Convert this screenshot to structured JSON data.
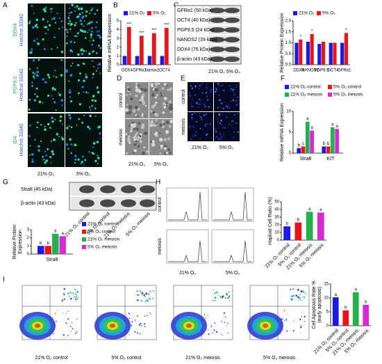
{
  "panel_labels": [
    "A",
    "B",
    "C",
    "D",
    "E",
    "F",
    "G",
    "H",
    "I"
  ],
  "images": {
    "A": {
      "row_labels": [
        [
          "DDX4",
          "Hoechst 33342"
        ],
        [
          "PGP9.5",
          "Hoechst 33342"
        ],
        [
          "ID4",
          "Hoechst 33342"
        ]
      ],
      "col_labels": [
        "21% O₂",
        "5% O₂"
      ]
    },
    "D": {
      "row_labels": [
        "control",
        "meiosis"
      ],
      "col_labels": [
        "21% O₂",
        "5% O₂"
      ]
    },
    "E": {
      "row_labels": [
        "control",
        "meiosis"
      ],
      "col_labels": [
        "21% O₂",
        "5% O₂"
      ]
    },
    "H": {
      "row_labels": [
        "control",
        "meiosis"
      ],
      "col_labels": [
        "21% O₂",
        "5% O₂"
      ]
    },
    "I": {
      "col_labels": [
        "21% O₂ control",
        "5% O₂ control",
        "21% O₂ meiosis",
        "5% O₂ meiosis"
      ]
    }
  },
  "blots": {
    "C": {
      "rows": [
        "GFRα1 (50 kDa)",
        "OCT4 (40 kDa)",
        "PGP9.5 (24 kDa)",
        "NANOS2 (39 kDa)",
        "DDX4 (76 kDa)",
        "β-actin (43 kDa)"
      ],
      "col_labels": [
        "21% O₂",
        "5% O₂"
      ]
    },
    "G": {
      "rows": [
        "Stra8 (45 kDa)",
        "β-actin (43 kDa)"
      ],
      "col_labels": [
        "21% O₂ control",
        "5% O₂ control",
        "21% O₂ meiosis",
        "5% O₂ meiosis"
      ]
    }
  },
  "chart_data": [
    {
      "type": "bar",
      "y_label": [
        "Relative mRNA Expression"
      ],
      "categories": [
        "DDX4",
        "GFRα1",
        "Nanos2",
        "OCT4"
      ],
      "series": [
        {
          "name": "21% O₂",
          "color": "#1a1ae6",
          "values": [
            1,
            1,
            1,
            1
          ]
        },
        {
          "name": "5% O₂",
          "color": "#e8141b",
          "values": [
            4.3,
            3.3,
            3.6,
            4.2
          ],
          "sig": [
            "***",
            "***",
            "***",
            "***"
          ]
        }
      ],
      "ylim": [
        0,
        5
      ],
      "yticks": [
        0,
        1,
        2,
        3,
        4,
        5
      ],
      "legend": "top"
    },
    {
      "type": "bar",
      "y_label": [
        "Relative Protein Expression"
      ],
      "categories": [
        "DDX4",
        "NANOS2",
        "PGP9.5",
        "OCT4",
        "GFRα1"
      ],
      "series": [
        {
          "name": "21% O₂",
          "color": "#1a1ae6",
          "values": [
            1.0,
            1.05,
            0.95,
            1.0,
            1.0
          ]
        },
        {
          "name": "5% O₂",
          "color": "#e8141b",
          "values": [
            1.15,
            1.4,
            1.05,
            1.0,
            1.45
          ],
          "sig": [
            "*",
            "*",
            null,
            null,
            "*"
          ]
        }
      ],
      "ylim": [
        0,
        2
      ],
      "yticks": [
        {
          "value": 0,
          "label": "0.0"
        },
        {
          "value": 0.5,
          "label": "0.5"
        },
        {
          "value": 1,
          "label": "1.0"
        },
        {
          "value": 1.5,
          "label": "1.5"
        },
        {
          "value": 2,
          "label": "2.0"
        }
      ],
      "legend": "top"
    },
    {
      "type": "bar",
      "y_label": [
        "Relative mRNA Expression"
      ],
      "categories": [
        "Stra8",
        "KIT"
      ],
      "series": [
        {
          "name": "21% O₂ control",
          "color": "#1a1ae6",
          "values": [
            1.2,
            1.6
          ],
          "sig": [
            "b",
            "b"
          ]
        },
        {
          "name": "5% O₂ control",
          "color": "#e8141b",
          "values": [
            1.6,
            1.6
          ],
          "sig": [
            "c",
            "b"
          ]
        },
        {
          "name": "21% O₂ meiosis",
          "color": "#22b14c",
          "values": [
            7.5,
            6.2
          ],
          "sig": [
            "a",
            "a"
          ]
        },
        {
          "name": "5% O₂ meiosis",
          "color": "#d42bd4",
          "values": [
            5.4,
            5.8
          ],
          "sig": [
            "a",
            "a"
          ]
        }
      ],
      "ylim": [
        0,
        10
      ],
      "yticks": [
        0,
        5,
        10
      ],
      "legend": "top"
    },
    {
      "type": "bar",
      "y_label": [
        "Relative Protein",
        "Expression"
      ],
      "categories": [
        "Stra8"
      ],
      "series": [
        {
          "name": "21% O₂ control",
          "color": "#1a1ae6",
          "values": [
            1.0
          ],
          "sig": [
            "b"
          ]
        },
        {
          "name": "5% O₂ control",
          "color": "#e8141b",
          "values": [
            1.0
          ],
          "sig": [
            "b"
          ]
        },
        {
          "name": "21% O₂ meiosis",
          "color": "#22b14c",
          "values": [
            2.5
          ],
          "sig": [
            "a"
          ]
        },
        {
          "name": "5% O₂ meiosis",
          "color": "#d42bd4",
          "values": [
            2.2
          ],
          "sig": [
            "a"
          ]
        }
      ],
      "ylim": [
        0,
        3
      ],
      "yticks": [
        0,
        1,
        2,
        3
      ],
      "legend": "right"
    },
    {
      "type": "bar",
      "y_label": [
        "Haploid Cell Ratio (%)"
      ],
      "categories": [
        "21% O₂ control",
        "5% O₂ control",
        "21% O₂ meiosis",
        "5% O₂ meiosis"
      ],
      "values": [
        18,
        23,
        37,
        36
      ],
      "colors": [
        "#1a1ae6",
        "#e8141b",
        "#22b14c",
        "#d42bd4"
      ],
      "sig": [
        "b",
        "b",
        "a",
        "a"
      ],
      "ylim": [
        0,
        50
      ],
      "yticks": [
        0,
        10,
        20,
        30,
        40,
        50
      ]
    },
    {
      "type": "bar",
      "y_label": [
        "Cell Apoptosis Rate %",
        "(early apoptosis)"
      ],
      "categories": [
        "21% O₂ control",
        "5% O₂ control",
        "21% O₂ meiosis",
        "5% O₂ meiosis"
      ],
      "values": [
        10.2,
        5.5,
        12,
        7.5
      ],
      "colors": [
        "#1a1ae6",
        "#e8141b",
        "#22b14c",
        "#d42bd4"
      ],
      "sig": [
        "a",
        "b",
        "a",
        "b"
      ],
      "ylim": [
        0,
        15
      ],
      "yticks": [
        0,
        5,
        10,
        15
      ]
    }
  ]
}
